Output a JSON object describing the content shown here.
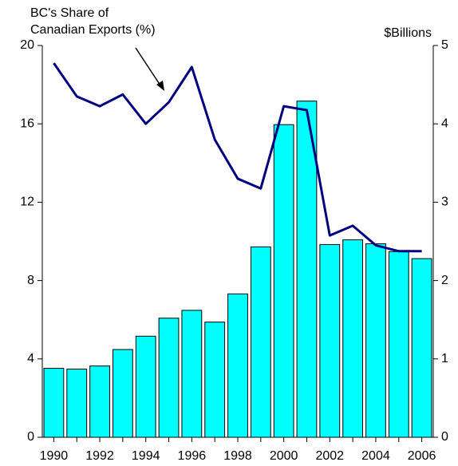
{
  "chart_data": {
    "type": "combo",
    "y_label_lines": [
      "BC's Share of",
      "Canadian Exports (%)"
    ],
    "y2_label": "$Billions",
    "categories": [
      "1990",
      null,
      "1992",
      null,
      "1994",
      null,
      "1996",
      null,
      "1998",
      null,
      "2000",
      null,
      "2002",
      null,
      "2004",
      null,
      "2006"
    ],
    "series": [
      {
        "type": "bar",
        "axis": "y2",
        "color": "#00ffff",
        "values": [
          0.88,
          0.87,
          0.91,
          1.12,
          1.29,
          1.52,
          1.62,
          1.47,
          1.83,
          2.43,
          3.99,
          4.29,
          2.46,
          2.52,
          2.47,
          2.37,
          2.28
        ]
      },
      {
        "type": "line",
        "axis": "y",
        "color": "#000080",
        "values": [
          19.1,
          17.4,
          16.9,
          17.5,
          16.0,
          17.1,
          18.9,
          15.2,
          13.2,
          12.7,
          16.9,
          16.7,
          10.3,
          10.8,
          9.8,
          9.5,
          9.5
        ]
      }
    ],
    "ylim": [
      0,
      20
    ],
    "yticks": [
      0,
      4,
      8,
      12,
      16,
      20
    ],
    "y2lim": [
      0,
      5
    ],
    "y2ticks": [
      0,
      1,
      2,
      3,
      4,
      5
    ]
  }
}
